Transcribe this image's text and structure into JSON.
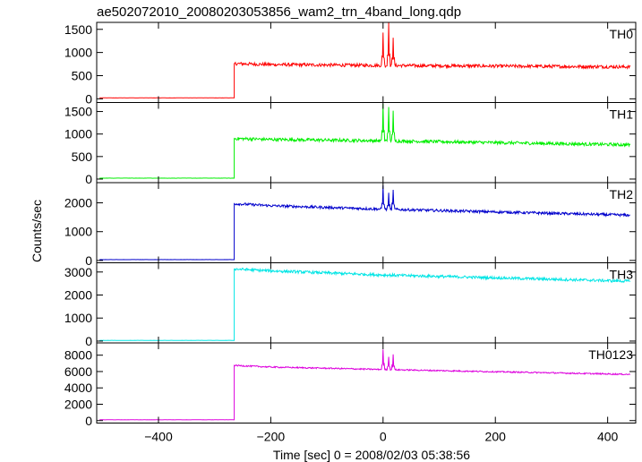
{
  "chart_data": {
    "type": "line",
    "title": "ae502072010_20080203053856_wam2_trn_4band_long.qdp",
    "xlabel": "Time [sec] 0 = 2008/02/03 05:38:56",
    "ylabel": "Counts/sec",
    "xlim": [
      -510,
      450
    ],
    "x_ticks": [
      -400,
      -200,
      0,
      200,
      400
    ],
    "x_tick_labels": [
      "−400",
      "−200",
      "0",
      "200",
      "400"
    ],
    "grid": false,
    "event": {
      "onset": -265,
      "burst_peaks": [
        0,
        10,
        18
      ]
    },
    "panels": [
      {
        "name": "TH0",
        "color": "#ff0000",
        "ylim": [
          -80,
          1650
        ],
        "yticks": [
          0,
          500,
          1000,
          1500
        ],
        "background": 20,
        "profile": {
          "x": [
            -265,
            -200,
            0,
            440
          ],
          "y": [
            760,
            740,
            720,
            690
          ]
        },
        "noise": 35,
        "spikes": [
          {
            "x": 0,
            "y": 1430
          },
          {
            "x": 10,
            "y": 1640
          },
          {
            "x": 18,
            "y": 1320
          }
        ]
      },
      {
        "name": "TH1",
        "color": "#00ee00",
        "ylim": [
          -80,
          1700
        ],
        "yticks": [
          0,
          500,
          1000,
          1500
        ],
        "background": 20,
        "profile": {
          "x": [
            -265,
            -200,
            0,
            440
          ],
          "y": [
            900,
            880,
            850,
            760
          ]
        },
        "noise": 35,
        "spikes": [
          {
            "x": 0,
            "y": 1670
          },
          {
            "x": 10,
            "y": 1600
          },
          {
            "x": 18,
            "y": 1520
          }
        ]
      },
      {
        "name": "TH2",
        "color": "#0000cc",
        "ylim": [
          -80,
          2700
        ],
        "yticks": [
          0,
          1000,
          2000
        ],
        "background": 30,
        "profile": {
          "x": [
            -265,
            -200,
            0,
            440
          ],
          "y": [
            1970,
            1900,
            1780,
            1570
          ]
        },
        "noise": 45,
        "spikes": [
          {
            "x": 0,
            "y": 2600
          },
          {
            "x": 10,
            "y": 2350
          },
          {
            "x": 18,
            "y": 2450
          }
        ]
      },
      {
        "name": "TH3",
        "color": "#00e5e5",
        "ylim": [
          -80,
          3400
        ],
        "yticks": [
          0,
          1000,
          2000,
          3000
        ],
        "background": 30,
        "profile": {
          "x": [
            -265,
            -200,
            0,
            440
          ],
          "y": [
            3130,
            3050,
            2870,
            2600
          ]
        },
        "noise": 60,
        "spikes": []
      },
      {
        "name": "TH0123",
        "color": "#dd00dd",
        "ylim": [
          -300,
          9500
        ],
        "yticks": [
          0,
          2000,
          4000,
          6000,
          8000
        ],
        "background": 100,
        "profile": {
          "x": [
            -265,
            -200,
            0,
            440
          ],
          "y": [
            6750,
            6550,
            6250,
            5650
          ]
        },
        "noise": 80,
        "spikes": [
          {
            "x": 0,
            "y": 8700
          },
          {
            "x": 10,
            "y": 7800
          },
          {
            "x": 18,
            "y": 8100
          }
        ]
      }
    ]
  }
}
